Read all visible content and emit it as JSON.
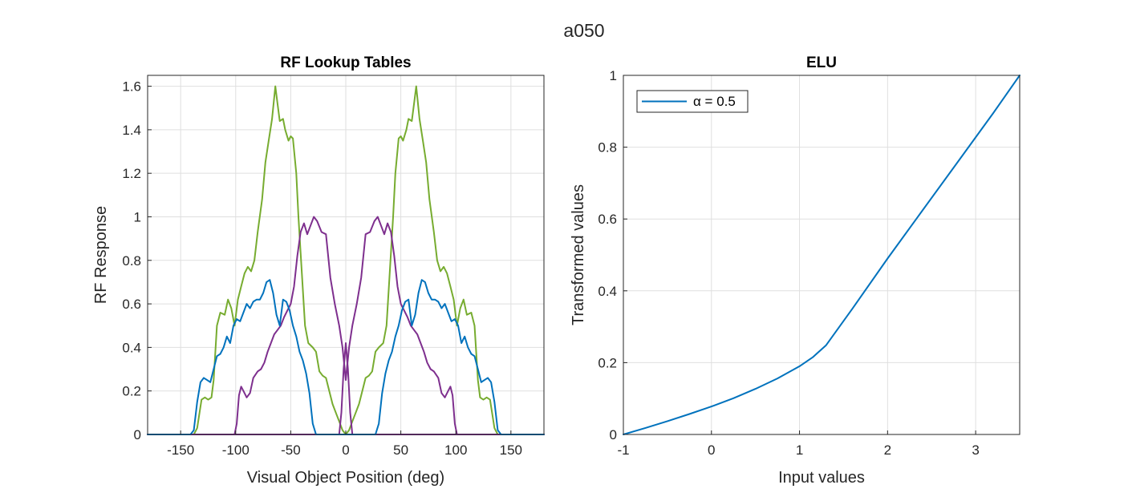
{
  "figure": {
    "suptitle": "a050"
  },
  "chart_data": [
    {
      "type": "line",
      "title": "RF Lookup Tables",
      "xlabel": "Visual Object Position (deg)",
      "ylabel": "RF Response",
      "xlim": [
        -180,
        180
      ],
      "ylim": [
        0,
        1.65
      ],
      "xticks": [
        -150,
        -100,
        -50,
        0,
        50,
        100,
        150
      ],
      "yticks": [
        0,
        0.2,
        0.4,
        0.6,
        0.8,
        1,
        1.2,
        1.4,
        1.6
      ],
      "xtick_labels": [
        "-150",
        "-100",
        "-50",
        "0",
        "50",
        "100",
        "150"
      ],
      "ytick_labels": [
        "0",
        "0.2",
        "0.4",
        "0.6",
        "0.8",
        "1",
        "1.2",
        "1.4",
        "1.6"
      ],
      "grid": true,
      "legend": null,
      "series": [
        {
          "color": "#77ac30",
          "x": [
            -180,
            -138,
            -135,
            -131,
            -128,
            -125,
            -122,
            -120,
            -117,
            -114,
            -110,
            -107,
            -104,
            -101,
            -98,
            -95,
            -92,
            -89,
            -86,
            -83,
            -80,
            -76,
            -73,
            -70,
            -67,
            -64,
            -62,
            -60,
            -57,
            -55,
            -52,
            -50,
            -48,
            -45,
            -43,
            -40,
            -37,
            -34,
            -30,
            -27,
            -24,
            -21,
            -18,
            -15,
            -12,
            -9,
            -6,
            -3,
            0
          ],
          "y": [
            0,
            0,
            0.03,
            0.16,
            0.17,
            0.16,
            0.17,
            0.25,
            0.5,
            0.56,
            0.55,
            0.62,
            0.58,
            0.5,
            0.62,
            0.68,
            0.74,
            0.77,
            0.75,
            0.8,
            0.93,
            1.08,
            1.25,
            1.35,
            1.45,
            1.6,
            1.52,
            1.44,
            1.45,
            1.4,
            1.35,
            1.37,
            1.36,
            1.2,
            1.0,
            0.75,
            0.5,
            0.42,
            0.4,
            0.38,
            0.29,
            0.27,
            0.26,
            0.2,
            0.14,
            0.1,
            0.06,
            0.02,
            0.0
          ]
        },
        {
          "color": "#77ac30",
          "x": [
            0,
            3,
            6,
            9,
            12,
            15,
            18,
            21,
            24,
            27,
            30,
            34,
            37,
            40,
            43,
            45,
            48,
            50,
            52,
            55,
            57,
            60,
            62,
            64,
            67,
            70,
            73,
            76,
            80,
            83,
            86,
            89,
            92,
            95,
            98,
            101,
            104,
            107,
            110,
            114,
            117,
            120,
            122,
            125,
            128,
            131,
            135,
            138,
            180
          ],
          "y": [
            0.0,
            0.02,
            0.06,
            0.1,
            0.14,
            0.2,
            0.26,
            0.27,
            0.29,
            0.38,
            0.4,
            0.42,
            0.5,
            0.75,
            1.0,
            1.2,
            1.36,
            1.37,
            1.35,
            1.4,
            1.45,
            1.44,
            1.52,
            1.6,
            1.45,
            1.35,
            1.25,
            1.08,
            0.93,
            0.8,
            0.75,
            0.77,
            0.74,
            0.68,
            0.62,
            0.5,
            0.58,
            0.62,
            0.55,
            0.56,
            0.5,
            0.25,
            0.17,
            0.16,
            0.17,
            0.16,
            0.03,
            0,
            0
          ]
        },
        {
          "color": "#7e2f8e",
          "x": [
            -180,
            -101,
            -99,
            -97,
            -95,
            -93,
            -90,
            -87,
            -84,
            -80,
            -77,
            -74,
            -71,
            -68,
            -65,
            -62,
            -59,
            -56,
            -53,
            -50,
            -47,
            -44,
            -41,
            -38,
            -35,
            -32,
            -29,
            -26,
            -22,
            -18,
            -14,
            -10,
            -6,
            -3,
            0,
            3,
            6,
            10,
            14,
            18,
            22,
            26,
            29,
            32,
            35,
            38,
            41,
            44,
            47,
            50,
            53,
            56,
            59,
            62,
            65,
            68,
            71,
            74,
            77,
            80,
            84,
            87,
            90,
            93,
            95,
            97,
            99,
            101,
            180
          ],
          "y": [
            0,
            0,
            0.05,
            0.18,
            0.22,
            0.2,
            0.17,
            0.19,
            0.26,
            0.29,
            0.3,
            0.33,
            0.38,
            0.42,
            0.46,
            0.48,
            0.5,
            0.54,
            0.57,
            0.6,
            0.68,
            0.82,
            0.93,
            0.97,
            0.92,
            0.96,
            1.0,
            0.98,
            0.93,
            0.92,
            0.72,
            0.6,
            0.5,
            0.4,
            0.25,
            0.4,
            0.5,
            0.6,
            0.72,
            0.92,
            0.93,
            0.98,
            1.0,
            0.96,
            0.92,
            0.97,
            0.93,
            0.82,
            0.68,
            0.6,
            0.57,
            0.54,
            0.5,
            0.48,
            0.46,
            0.42,
            0.38,
            0.33,
            0.3,
            0.29,
            0.26,
            0.19,
            0.17,
            0.2,
            0.22,
            0.18,
            0.05,
            0,
            0
          ]
        },
        {
          "color": "#7e2f8e",
          "x": [
            -180,
            -6,
            -4,
            -2,
            0,
            2,
            4,
            6,
            180
          ],
          "y": [
            0,
            0,
            0.1,
            0.3,
            0.42,
            0.3,
            0.1,
            0,
            0
          ]
        },
        {
          "color": "#0072bd",
          "x": [
            -180,
            -141,
            -138,
            -135,
            -132,
            -129,
            -126,
            -123,
            -120,
            -117,
            -114,
            -111,
            -108,
            -105,
            -102,
            -99,
            -96,
            -93,
            -90,
            -87,
            -84,
            -81,
            -78,
            -75,
            -72,
            -69,
            -66,
            -63,
            -60,
            -57,
            -54,
            -51,
            -48,
            -45,
            -42,
            -39,
            -36,
            -33,
            -30,
            -27,
            -24,
            -21,
            -18,
            -15,
            -12,
            -9,
            -6,
            -3,
            0,
            3,
            6,
            9,
            12,
            15,
            18,
            21,
            24,
            27,
            30,
            33,
            36,
            39,
            42,
            45,
            48,
            51,
            54,
            57,
            60,
            63,
            66,
            69,
            72,
            75,
            78,
            81,
            84,
            87,
            90,
            93,
            96,
            99,
            102,
            105,
            108,
            111,
            114,
            117,
            120,
            123,
            126,
            129,
            132,
            135,
            138,
            141,
            180
          ],
          "y": [
            0,
            0,
            0.02,
            0.15,
            0.24,
            0.26,
            0.25,
            0.24,
            0.3,
            0.36,
            0.37,
            0.4,
            0.45,
            0.42,
            0.5,
            0.53,
            0.52,
            0.56,
            0.6,
            0.58,
            0.61,
            0.62,
            0.62,
            0.65,
            0.7,
            0.71,
            0.65,
            0.55,
            0.5,
            0.62,
            0.61,
            0.57,
            0.5,
            0.45,
            0.38,
            0.34,
            0.28,
            0.19,
            0.05,
            0,
            0,
            0,
            0,
            0,
            0,
            0,
            0,
            0,
            0,
            0,
            0,
            0,
            0,
            0,
            0,
            0,
            0,
            0,
            0.05,
            0.19,
            0.28,
            0.34,
            0.38,
            0.45,
            0.5,
            0.57,
            0.61,
            0.62,
            0.5,
            0.55,
            0.65,
            0.71,
            0.7,
            0.65,
            0.62,
            0.62,
            0.61,
            0.58,
            0.6,
            0.56,
            0.52,
            0.53,
            0.5,
            0.42,
            0.45,
            0.4,
            0.37,
            0.36,
            0.3,
            0.24,
            0.25,
            0.26,
            0.24,
            0.15,
            0.02,
            0,
            0
          ]
        }
      ]
    },
    {
      "type": "line",
      "title": "ELU",
      "xlabel": "Input values",
      "ylabel": "Transformed values",
      "xlim": [
        -1,
        3.5
      ],
      "ylim": [
        0,
        1
      ],
      "xticks": [
        -1,
        0,
        1,
        2,
        3
      ],
      "yticks": [
        0,
        0.2,
        0.4,
        0.6,
        0.8,
        1
      ],
      "xtick_labels": [
        "-1",
        "0",
        "1",
        "2",
        "3"
      ],
      "ytick_labels": [
        "0",
        "0.2",
        "0.4",
        "0.6",
        "0.8",
        "1"
      ],
      "grid": true,
      "legend": {
        "position": "top-left",
        "label": "α = 0.5"
      },
      "series": [
        {
          "name": "α = 0.5",
          "color": "#0072bd",
          "x": [
            -1,
            -0.75,
            -0.5,
            -0.25,
            0,
            0.25,
            0.5,
            0.75,
            1.0,
            1.15,
            1.3,
            1.6,
            2.0,
            2.4,
            2.8,
            3.2,
            3.5
          ],
          "y": [
            0,
            0.018,
            0.037,
            0.057,
            0.078,
            0.101,
            0.127,
            0.156,
            0.19,
            0.215,
            0.248,
            0.35,
            0.49,
            0.625,
            0.76,
            0.895,
            1.0
          ]
        }
      ]
    }
  ]
}
